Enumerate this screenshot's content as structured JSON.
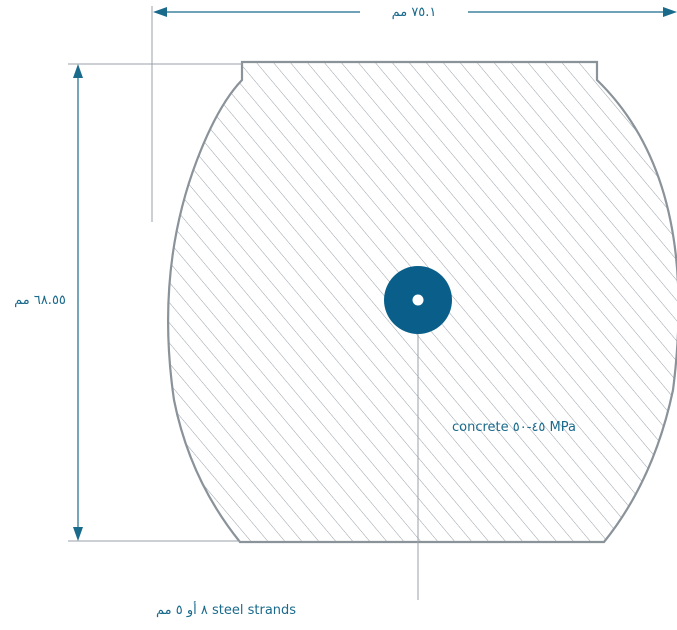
{
  "colors": {
    "accent": "#1a6a8c",
    "outline": "#8a929a",
    "hatch": "#9aa1a8",
    "strand": "#0a5f8a",
    "leader": "#9aa1a8",
    "background": "#ffffff"
  },
  "labels": {
    "width_dimension": "٧٥.١ مم",
    "height_dimension": "٦٨.٥٥ مم",
    "concrete": "concrete ٤٥-٥٠ MPa",
    "strands": "٨ أو ٥ مم steel strands"
  }
}
